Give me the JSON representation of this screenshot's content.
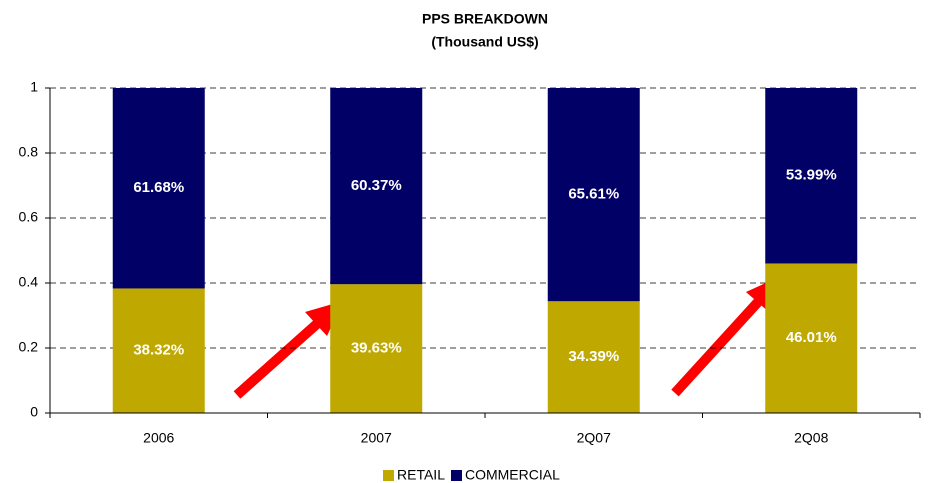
{
  "chart_data": {
    "type": "stacked_bar",
    "title": "PPS BREAKDOWN",
    "subtitle": "(Thousand US$)",
    "categories": [
      "2006",
      "2007",
      "2Q07",
      "2Q08"
    ],
    "series": [
      {
        "name": "RETAIL",
        "color": "#bfa800",
        "values": [
          0.3832,
          0.3963,
          0.3439,
          0.4601
        ],
        "value_labels": [
          "38.32%",
          "39.63%",
          "34.39%",
          "46.01%"
        ]
      },
      {
        "name": "COMMERCIAL",
        "color": "#000066",
        "values": [
          0.6168,
          0.6037,
          0.6561,
          0.5399
        ],
        "value_labels": [
          "61.68%",
          "60.37%",
          "65.61%",
          "53.99%"
        ]
      }
    ],
    "ylim": [
      0,
      1
    ],
    "yticks": [
      0,
      0.2,
      0.4,
      0.6,
      0.8,
      1
    ],
    "grid": true,
    "legend": "bottom"
  }
}
